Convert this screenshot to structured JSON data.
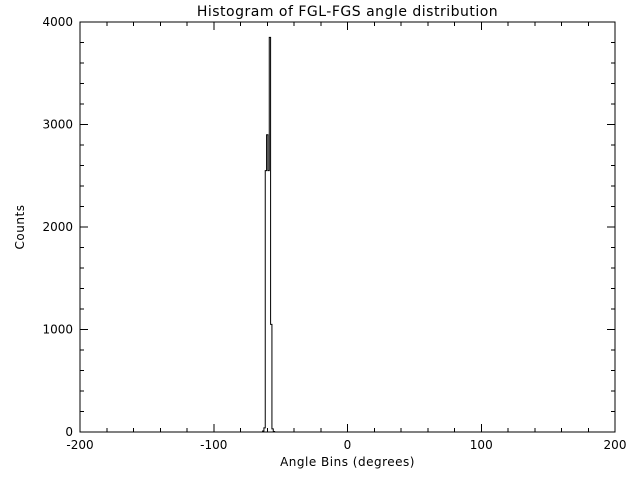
{
  "figure": {
    "background_color": "#ffffff",
    "foreground_color": "#000000"
  },
  "chart_data": {
    "type": "bar",
    "style": "step-histogram",
    "title": "Histogram of FGL-FGS angle distribution",
    "xlabel": "Angle Bins (degrees)",
    "ylabel": "Counts",
    "xlim": [
      -200,
      200
    ],
    "ylim": [
      0,
      4000
    ],
    "grid": false,
    "legend": null,
    "x_major_ticks": [
      -200,
      -100,
      0,
      100,
      200
    ],
    "x_tick_labels": [
      "-200",
      "-100",
      "0",
      "100",
      "200"
    ],
    "x_minor_interval": 20,
    "y_major_ticks": [
      0,
      1000,
      2000,
      3000,
      4000
    ],
    "y_tick_labels": [
      "0",
      "1000",
      "2000",
      "3000",
      "4000"
    ],
    "y_minor_interval": 200,
    "bin_width": 1,
    "bins": [
      {
        "x": -64,
        "count": 0
      },
      {
        "x": -63,
        "count": 10
      },
      {
        "x": -62,
        "count": 40
      },
      {
        "x": -61,
        "count": 2550
      },
      {
        "x": -60,
        "count": 2900
      },
      {
        "x": -59,
        "count": 2550
      },
      {
        "x": -58,
        "count": 3850
      },
      {
        "x": -57,
        "count": 1050
      },
      {
        "x": -56,
        "count": 30
      },
      {
        "x": -55,
        "count": 5
      },
      {
        "x": -54,
        "count": 0
      }
    ],
    "peak": {
      "x": -58,
      "count": 3850
    }
  }
}
